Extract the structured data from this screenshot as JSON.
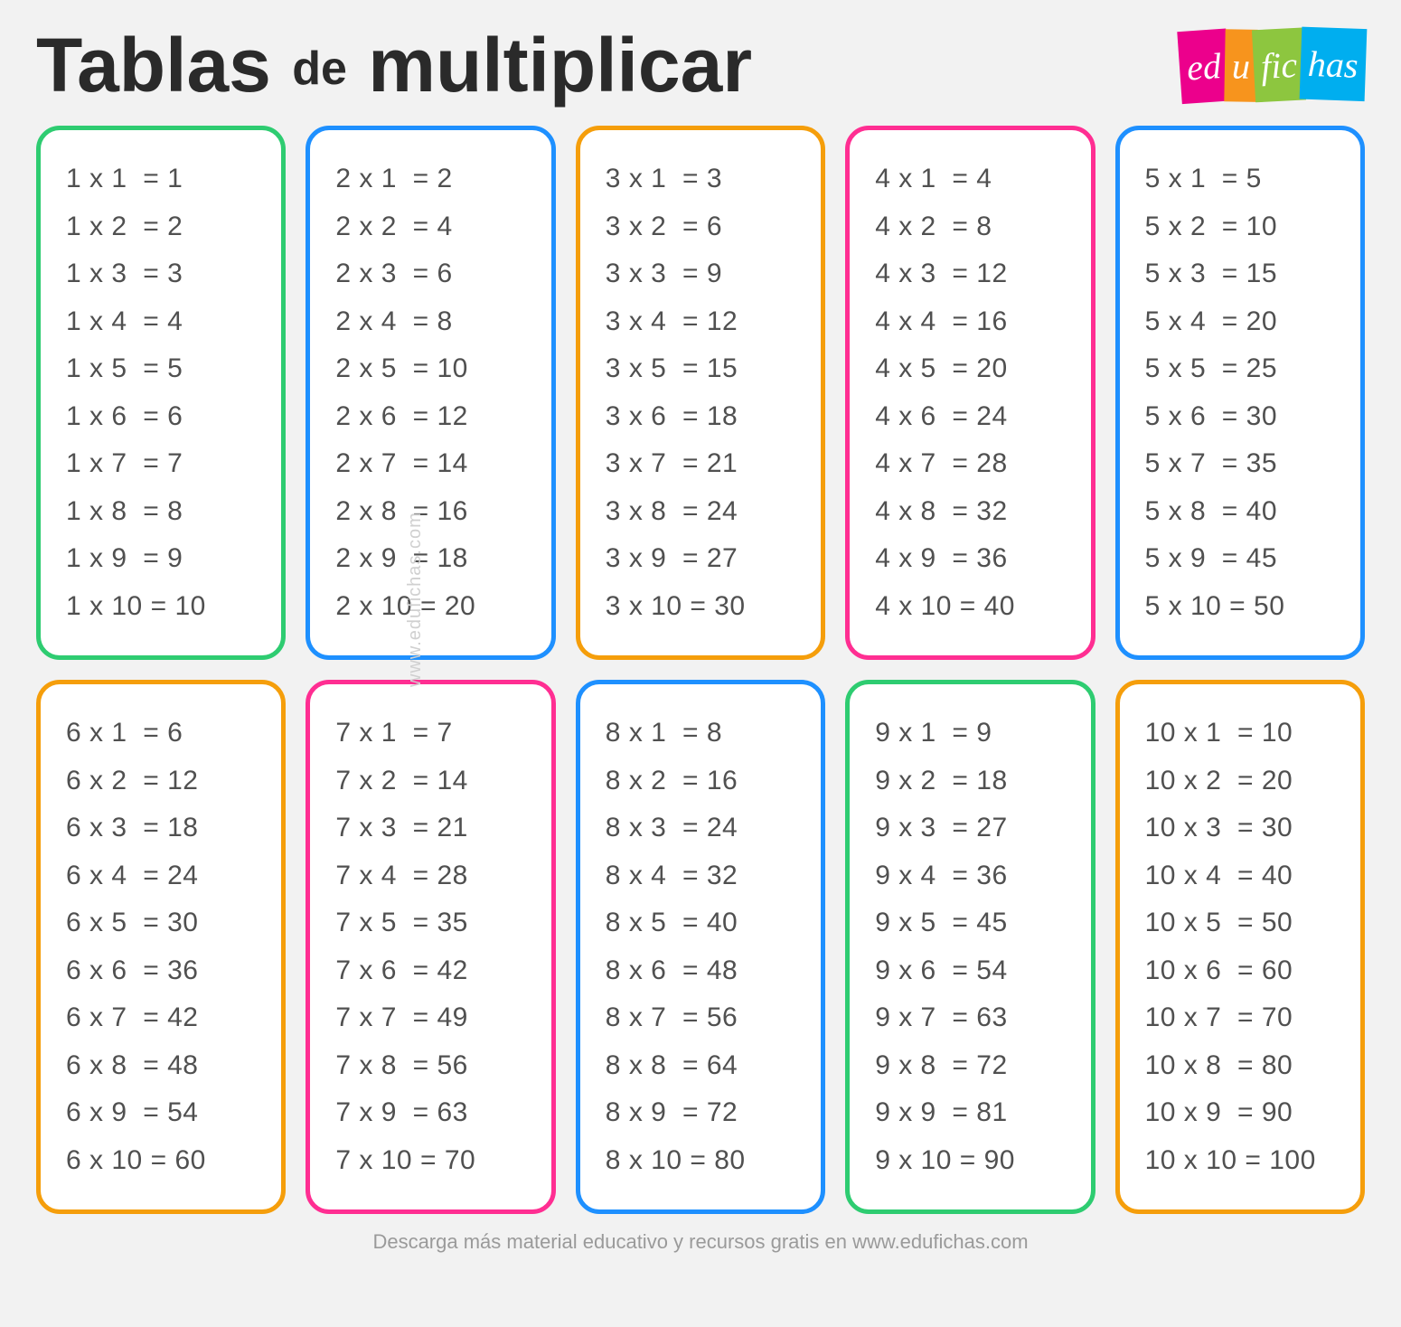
{
  "title_main1": "Tablas",
  "title_de": "de",
  "title_main2": "multiplicar",
  "logo": {
    "p1": "ed",
    "p2": "u",
    "p3": "fic",
    "p4": "has"
  },
  "watermark": "www.edufichas.com",
  "footer": "Descarga más material educativo y recursos gratis en www.edufichas.com",
  "colors": {
    "green": "#2ecc71",
    "blue": "#1e90ff",
    "orange": "#f59e0b",
    "pink": "#ff2e92",
    "text": "#505050",
    "bg": "#f2f2f2",
    "card_bg": "#ffffff"
  },
  "tables": [
    {
      "n": 1,
      "border": "green",
      "rows": [
        [
          1,
          1,
          1
        ],
        [
          1,
          2,
          2
        ],
        [
          1,
          3,
          3
        ],
        [
          1,
          4,
          4
        ],
        [
          1,
          5,
          5
        ],
        [
          1,
          6,
          6
        ],
        [
          1,
          7,
          7
        ],
        [
          1,
          8,
          8
        ],
        [
          1,
          9,
          9
        ],
        [
          1,
          10,
          10
        ]
      ]
    },
    {
      "n": 2,
      "border": "blue",
      "rows": [
        [
          2,
          1,
          2
        ],
        [
          2,
          2,
          4
        ],
        [
          2,
          3,
          6
        ],
        [
          2,
          4,
          8
        ],
        [
          2,
          5,
          10
        ],
        [
          2,
          6,
          12
        ],
        [
          2,
          7,
          14
        ],
        [
          2,
          8,
          16
        ],
        [
          2,
          9,
          18
        ],
        [
          2,
          10,
          20
        ]
      ]
    },
    {
      "n": 3,
      "border": "orange",
      "rows": [
        [
          3,
          1,
          3
        ],
        [
          3,
          2,
          6
        ],
        [
          3,
          3,
          9
        ],
        [
          3,
          4,
          12
        ],
        [
          3,
          5,
          15
        ],
        [
          3,
          6,
          18
        ],
        [
          3,
          7,
          21
        ],
        [
          3,
          8,
          24
        ],
        [
          3,
          9,
          27
        ],
        [
          3,
          10,
          30
        ]
      ]
    },
    {
      "n": 4,
      "border": "pink",
      "rows": [
        [
          4,
          1,
          4
        ],
        [
          4,
          2,
          8
        ],
        [
          4,
          3,
          12
        ],
        [
          4,
          4,
          16
        ],
        [
          4,
          5,
          20
        ],
        [
          4,
          6,
          24
        ],
        [
          4,
          7,
          28
        ],
        [
          4,
          8,
          32
        ],
        [
          4,
          9,
          36
        ],
        [
          4,
          10,
          40
        ]
      ]
    },
    {
      "n": 5,
      "border": "blue",
      "rows": [
        [
          5,
          1,
          5
        ],
        [
          5,
          2,
          10
        ],
        [
          5,
          3,
          15
        ],
        [
          5,
          4,
          20
        ],
        [
          5,
          5,
          25
        ],
        [
          5,
          6,
          30
        ],
        [
          5,
          7,
          35
        ],
        [
          5,
          8,
          40
        ],
        [
          5,
          9,
          45
        ],
        [
          5,
          10,
          50
        ]
      ]
    },
    {
      "n": 6,
      "border": "orange",
      "rows": [
        [
          6,
          1,
          6
        ],
        [
          6,
          2,
          12
        ],
        [
          6,
          3,
          18
        ],
        [
          6,
          4,
          24
        ],
        [
          6,
          5,
          30
        ],
        [
          6,
          6,
          36
        ],
        [
          6,
          7,
          42
        ],
        [
          6,
          8,
          48
        ],
        [
          6,
          9,
          54
        ],
        [
          6,
          10,
          60
        ]
      ]
    },
    {
      "n": 7,
      "border": "pink",
      "rows": [
        [
          7,
          1,
          7
        ],
        [
          7,
          2,
          14
        ],
        [
          7,
          3,
          21
        ],
        [
          7,
          4,
          28
        ],
        [
          7,
          5,
          35
        ],
        [
          7,
          6,
          42
        ],
        [
          7,
          7,
          49
        ],
        [
          7,
          8,
          56
        ],
        [
          7,
          9,
          63
        ],
        [
          7,
          10,
          70
        ]
      ]
    },
    {
      "n": 8,
      "border": "blue",
      "rows": [
        [
          8,
          1,
          8
        ],
        [
          8,
          2,
          16
        ],
        [
          8,
          3,
          24
        ],
        [
          8,
          4,
          32
        ],
        [
          8,
          5,
          40
        ],
        [
          8,
          6,
          48
        ],
        [
          8,
          7,
          56
        ],
        [
          8,
          8,
          64
        ],
        [
          8,
          9,
          72
        ],
        [
          8,
          10,
          80
        ]
      ]
    },
    {
      "n": 9,
      "border": "green",
      "rows": [
        [
          9,
          1,
          9
        ],
        [
          9,
          2,
          18
        ],
        [
          9,
          3,
          27
        ],
        [
          9,
          4,
          36
        ],
        [
          9,
          5,
          45
        ],
        [
          9,
          6,
          54
        ],
        [
          9,
          7,
          63
        ],
        [
          9,
          8,
          72
        ],
        [
          9,
          9,
          81
        ],
        [
          9,
          10,
          90
        ]
      ]
    },
    {
      "n": 10,
      "border": "orange",
      "rows": [
        [
          10,
          1,
          10
        ],
        [
          10,
          2,
          20
        ],
        [
          10,
          3,
          30
        ],
        [
          10,
          4,
          40
        ],
        [
          10,
          5,
          50
        ],
        [
          10,
          6,
          60
        ],
        [
          10,
          7,
          70
        ],
        [
          10,
          8,
          80
        ],
        [
          10,
          9,
          90
        ],
        [
          10,
          10,
          100
        ]
      ]
    }
  ]
}
